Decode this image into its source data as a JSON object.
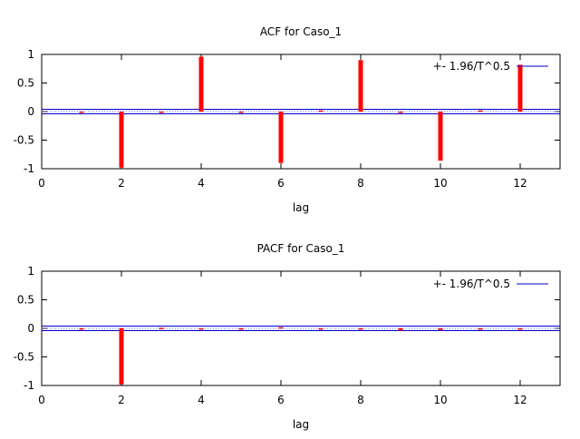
{
  "colors": {
    "bar": "#ff0000",
    "zero_line": "#000000",
    "band": "#0000cc",
    "band_dots": "#6060ff",
    "frame": "#000000"
  },
  "chart_data": [
    {
      "type": "bar",
      "title": "ACF for Caso_1",
      "xlabel": "lag",
      "ylabel": "",
      "xlim": [
        0,
        13
      ],
      "ylim": [
        -1,
        1
      ],
      "x_ticks": [
        "0",
        "2",
        "4",
        "6",
        "8",
        "10",
        "12"
      ],
      "y_ticks": [
        "1",
        "0.5",
        "0",
        "-0.5",
        "-1"
      ],
      "lags": [
        1,
        2,
        3,
        4,
        5,
        6,
        7,
        8,
        9,
        10,
        11,
        12
      ],
      "values": [
        0.0,
        -0.98,
        0.0,
        0.96,
        -0.01,
        -0.9,
        0.02,
        0.9,
        -0.02,
        -0.86,
        0.02,
        0.82
      ],
      "confidence_band": 0.04,
      "legend": "+- 1.96/T^0.5",
      "legend_position": "top-right",
      "grid": false
    },
    {
      "type": "bar",
      "title": "PACF for Caso_1",
      "xlabel": "lag",
      "ylabel": "",
      "xlim": [
        0,
        13
      ],
      "ylim": [
        -1,
        1
      ],
      "x_ticks": [
        "0",
        "2",
        "4",
        "6",
        "8",
        "10",
        "12"
      ],
      "y_ticks": [
        "1",
        "0.5",
        "0",
        "-0.5",
        "-1"
      ],
      "lags": [
        1,
        2,
        3,
        4,
        5,
        6,
        7,
        8,
        9,
        10,
        11,
        12
      ],
      "values": [
        0.0,
        -0.98,
        0.01,
        -0.01,
        0.0,
        0.02,
        0.0,
        0.0,
        -0.04,
        -0.03,
        0.0,
        -0.01
      ],
      "confidence_band": 0.04,
      "legend": "+- 1.96/T^0.5",
      "legend_position": "top-right",
      "grid": false
    }
  ]
}
